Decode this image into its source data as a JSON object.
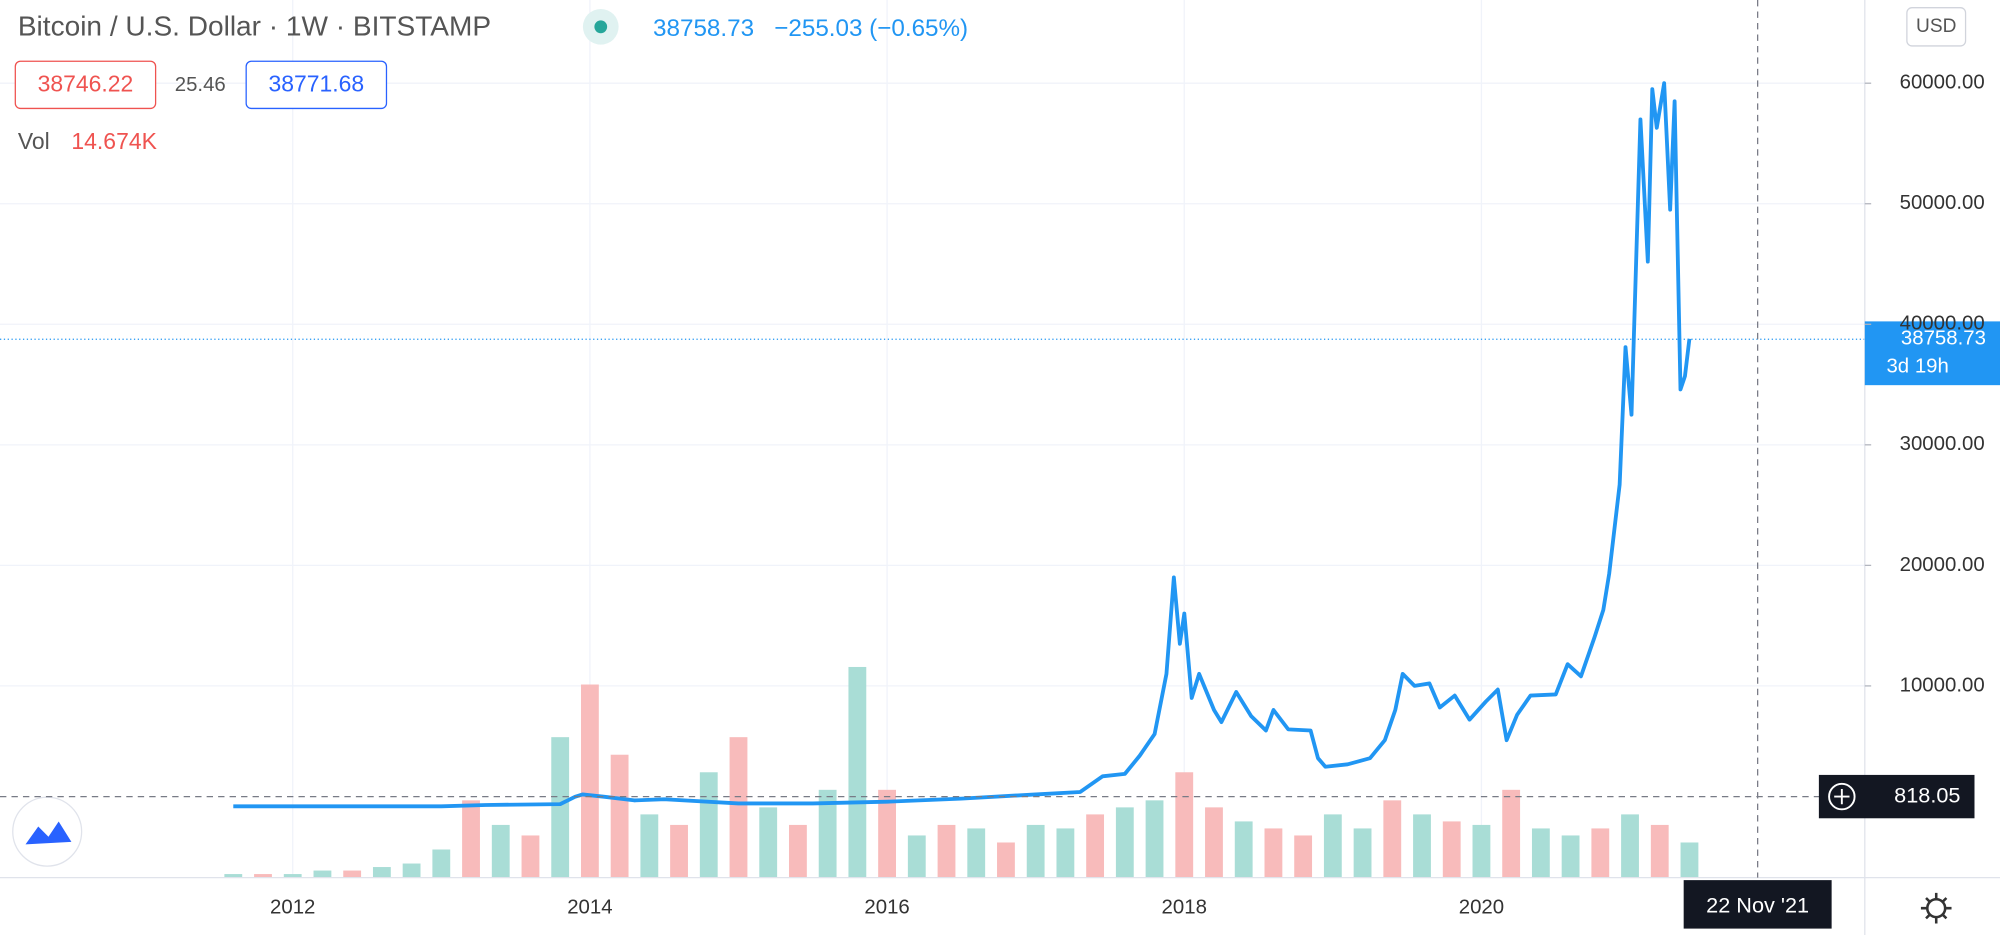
{
  "chart_data": {
    "type": "line",
    "title": "Bitcoin / U.S. Dollar · 1W · BITSTAMP",
    "last_price": 38758.73,
    "change": "−255.03 (−0.65%)",
    "bid": "38746.22",
    "spread": "25.46",
    "ask": "38771.68",
    "volume_label": "Vol",
    "volume_value": "14.674K",
    "currency": "USD",
    "countdown": "3d 19h",
    "crosshair": {
      "price": 818.05,
      "date": "22 Nov '21"
    },
    "xlim": [
      2010.03,
      2022.58
    ],
    "xticks": [
      2012,
      2014,
      2016,
      2018,
      2020
    ],
    "ylim": [
      -5900,
      66900
    ],
    "yticks": [
      {
        "value": 10000,
        "label": "10000.00"
      },
      {
        "value": 20000,
        "label": "20000.00"
      },
      {
        "value": 30000,
        "label": "30000.00"
      },
      {
        "value": 40000,
        "label": "40000.00"
      },
      {
        "value": 50000,
        "label": "50000.00"
      },
      {
        "value": 60000,
        "label": "60000.00"
      }
    ],
    "grid": true,
    "series": [
      {
        "color": "#2196f3",
        "x": [
          2011.6,
          2013.0,
          2013.3,
          2013.8,
          2013.9,
          2013.95,
          2014.1,
          2014.3,
          2014.5,
          2015.0,
          2015.5,
          2016.0,
          2016.5,
          2017.0,
          2017.3,
          2017.45,
          2017.6,
          2017.7,
          2017.8,
          2017.88,
          2017.93,
          2017.97,
          2018.0,
          2018.05,
          2018.1,
          2018.2,
          2018.25,
          2018.35,
          2018.45,
          2018.55,
          2018.6,
          2018.7,
          2018.85,
          2018.9,
          2018.95,
          2019.1,
          2019.25,
          2019.35,
          2019.42,
          2019.47,
          2019.55,
          2019.65,
          2019.72,
          2019.82,
          2019.92,
          2020.03,
          2020.11,
          2020.17,
          2020.24,
          2020.33,
          2020.5,
          2020.58,
          2020.67,
          2020.76,
          2020.82,
          2020.86,
          2020.93,
          2020.97,
          2021.01,
          2021.07,
          2021.12,
          2021.15,
          2021.18,
          2021.23,
          2021.27,
          2021.3,
          2021.34,
          2021.37,
          2021.4
        ],
        "values": [
          10,
          15,
          120,
          200,
          800,
          1000,
          800,
          500,
          600,
          250,
          250,
          400,
          650,
          1000,
          1200,
          2500,
          2700,
          4200,
          6000,
          11000,
          19000,
          13500,
          16000,
          9000,
          11000,
          8000,
          7000,
          9500,
          7500,
          6300,
          8000,
          6400,
          6300,
          4000,
          3300,
          3500,
          4000,
          5500,
          8000,
          11000,
          10000,
          10200,
          8200,
          9200,
          7200,
          8700,
          9700,
          5500,
          7600,
          9200,
          9300,
          11800,
          10800,
          14000,
          16300,
          19300,
          26700,
          38100,
          32500,
          57000,
          45200,
          59500,
          56300,
          60000,
          49500,
          58500,
          34600,
          35700,
          38800
        ]
      }
    ],
    "volume": {
      "vlim": [
        0,
        250
      ],
      "up_color": "#a9ddd6",
      "down_color": "#f8bbbb",
      "x": [
        2011.6,
        2011.8,
        2012.0,
        2012.2,
        2012.4,
        2012.6,
        2012.8,
        2013.0,
        2013.2,
        2013.4,
        2013.6,
        2013.8,
        2014.0,
        2014.2,
        2014.4,
        2014.6,
        2014.8,
        2015.0,
        2015.2,
        2015.4,
        2015.6,
        2015.8,
        2016.0,
        2016.2,
        2016.4,
        2016.6,
        2016.8,
        2017.0,
        2017.2,
        2017.4,
        2017.6,
        2017.8,
        2018.0,
        2018.2,
        2018.4,
        2018.6,
        2018.8,
        2019.0,
        2019.2,
        2019.4,
        2019.6,
        2019.8,
        2020.0,
        2020.2,
        2020.4,
        2020.6,
        2020.8,
        2021.0,
        2021.2,
        2021.4
      ],
      "values": [
        1,
        1,
        1,
        2,
        2,
        3,
        4,
        8,
        22,
        15,
        12,
        40,
        55,
        35,
        18,
        15,
        30,
        40,
        20,
        15,
        25,
        60,
        25,
        12,
        15,
        14,
        10,
        15,
        14,
        18,
        20,
        22,
        30,
        20,
        16,
        14,
        12,
        18,
        14,
        22,
        18,
        16,
        15,
        25,
        14,
        12,
        14,
        18,
        15,
        10
      ],
      "up": [
        true,
        false,
        true,
        true,
        false,
        true,
        true,
        true,
        false,
        true,
        false,
        true,
        false,
        false,
        true,
        false,
        true,
        false,
        true,
        false,
        true,
        true,
        false,
        true,
        false,
        true,
        false,
        true,
        true,
        false,
        true,
        true,
        false,
        false,
        true,
        false,
        false,
        true,
        true,
        false,
        true,
        false,
        true,
        false,
        true,
        true,
        false,
        true,
        false,
        true
      ]
    }
  }
}
